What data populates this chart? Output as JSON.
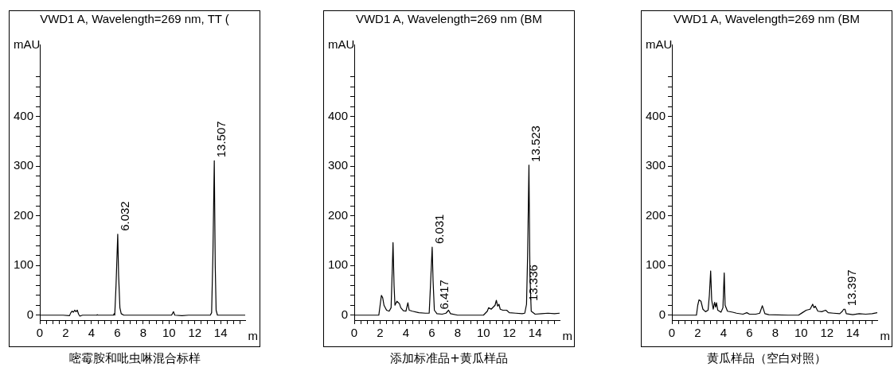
{
  "chart_data": [
    {
      "type": "line",
      "title": "VWD1 A, Wavelength=269 nm, TT (",
      "ylabel": "mAU",
      "xlabel": "m",
      "xlim": [
        0,
        15.9
      ],
      "ylim": [
        -10,
        545
      ],
      "xticks": [
        0,
        {
          "value": 0.5,
          "label": null
        },
        {
          "value": 1,
          "label": null
        },
        {
          "value": 1.5,
          "label": null
        },
        2,
        {
          "value": 2.5,
          "label": null
        },
        {
          "value": 3,
          "label": null
        },
        {
          "value": 3.5,
          "label": null
        },
        4,
        {
          "value": 4.5,
          "label": null
        },
        {
          "value": 5,
          "label": null
        },
        {
          "value": 5.5,
          "label": null
        },
        6,
        {
          "value": 6.5,
          "label": null
        },
        {
          "value": 7,
          "label": null
        },
        {
          "value": 7.5,
          "label": null
        },
        8,
        {
          "value": 8.5,
          "label": null
        },
        {
          "value": 9,
          "label": null
        },
        {
          "value": 9.5,
          "label": null
        },
        10,
        {
          "value": 10.5,
          "label": null
        },
        {
          "value": 11,
          "label": null
        },
        {
          "value": 11.5,
          "label": null
        },
        12,
        {
          "value": 12.5,
          "label": null
        },
        {
          "value": 13,
          "label": null
        },
        {
          "value": 13.5,
          "label": null
        },
        14,
        {
          "value": 14.5,
          "label": null
        },
        {
          "value": 15,
          "label": null
        },
        {
          "value": 15.5,
          "label": null
        }
      ],
      "yticks": [
        0,
        {
          "value": 20,
          "label": null
        },
        {
          "value": 40,
          "label": null
        },
        {
          "value": 60,
          "label": null
        },
        {
          "value": 80,
          "label": null
        },
        100,
        {
          "value": 120,
          "label": null
        },
        {
          "value": 140,
          "label": null
        },
        {
          "value": 160,
          "label": null
        },
        {
          "value": 180,
          "label": null
        },
        200,
        {
          "value": 220,
          "label": null
        },
        {
          "value": 240,
          "label": null
        },
        {
          "value": 260,
          "label": null
        },
        {
          "value": 280,
          "label": null
        },
        300,
        {
          "value": 320,
          "label": null
        },
        {
          "value": 340,
          "label": null
        },
        {
          "value": 360,
          "label": null
        },
        {
          "value": 380,
          "label": null
        },
        400,
        {
          "value": 420,
          "label": null
        },
        {
          "value": 440,
          "label": null
        },
        {
          "value": 460,
          "label": null
        },
        {
          "value": 480,
          "label": null
        }
      ],
      "grid": false,
      "legend": false,
      "series": [
        {
          "color": "#000000",
          "x": [
            0,
            1.8,
            2.3,
            2.4,
            2.5,
            2.6,
            2.7,
            2.8,
            2.9,
            3.0,
            3.1,
            3.3,
            4.4,
            4.45,
            4.5,
            5.7,
            5.75,
            5.8,
            5.9,
            6.032,
            6.1,
            6.2,
            6.3,
            6.5,
            10.2,
            10.35,
            10.45,
            11.0,
            11.5,
            12.9,
            13.2,
            13.3,
            13.4,
            13.507,
            13.58,
            13.65,
            13.75,
            15.9
          ],
          "values": [
            0,
            0,
            -1,
            5,
            8,
            6,
            10,
            7,
            10,
            2,
            -2,
            0,
            0,
            1,
            0,
            0,
            3,
            0,
            60,
            163,
            80,
            15,
            3,
            0,
            0,
            7,
            0,
            -1,
            0,
            0,
            0,
            5,
            120,
            311,
            100,
            10,
            0,
            0
          ]
        }
      ],
      "annotations": [
        {
          "text": "6.032",
          "x": 6.032,
          "y": 163
        },
        {
          "text": "13.507",
          "x": 13.507,
          "y": 311
        },
        "嘧霉胺和吡虫啉混合标样"
      ]
    },
    {
      "type": "line",
      "title": "VWD1 A, Wavelength=269 nm (BM",
      "ylabel": "mAU",
      "xlabel": "m",
      "xlim": [
        0,
        15.9
      ],
      "ylim": [
        -10,
        545
      ],
      "xticks": [
        0,
        {
          "value": 0.5,
          "label": null
        },
        {
          "value": 1,
          "label": null
        },
        {
          "value": 1.5,
          "label": null
        },
        2,
        {
          "value": 2.5,
          "label": null
        },
        {
          "value": 3,
          "label": null
        },
        {
          "value": 3.5,
          "label": null
        },
        4,
        {
          "value": 4.5,
          "label": null
        },
        {
          "value": 5,
          "label": null
        },
        {
          "value": 5.5,
          "label": null
        },
        6,
        {
          "value": 6.5,
          "label": null
        },
        {
          "value": 7,
          "label": null
        },
        {
          "value": 7.5,
          "label": null
        },
        8,
        {
          "value": 8.5,
          "label": null
        },
        {
          "value": 9,
          "label": null
        },
        {
          "value": 9.5,
          "label": null
        },
        10,
        {
          "value": 10.5,
          "label": null
        },
        {
          "value": 11,
          "label": null
        },
        {
          "value": 11.5,
          "label": null
        },
        12,
        {
          "value": 12.5,
          "label": null
        },
        {
          "value": 13,
          "label": null
        },
        {
          "value": 13.5,
          "label": null
        },
        14,
        {
          "value": 14.5,
          "label": null
        },
        {
          "value": 15,
          "label": null
        },
        {
          "value": 15.5,
          "label": null
        }
      ],
      "yticks": [
        0,
        {
          "value": 20,
          "label": null
        },
        {
          "value": 40,
          "label": null
        },
        {
          "value": 60,
          "label": null
        },
        {
          "value": 80,
          "label": null
        },
        100,
        {
          "value": 120,
          "label": null
        },
        {
          "value": 140,
          "label": null
        },
        {
          "value": 160,
          "label": null
        },
        {
          "value": 180,
          "label": null
        },
        200,
        {
          "value": 220,
          "label": null
        },
        {
          "value": 240,
          "label": null
        },
        {
          "value": 260,
          "label": null
        },
        {
          "value": 280,
          "label": null
        },
        300,
        {
          "value": 320,
          "label": null
        },
        {
          "value": 340,
          "label": null
        },
        {
          "value": 360,
          "label": null
        },
        {
          "value": 380,
          "label": null
        },
        400,
        {
          "value": 420,
          "label": null
        },
        {
          "value": 440,
          "label": null
        },
        {
          "value": 460,
          "label": null
        },
        {
          "value": 480,
          "label": null
        }
      ],
      "grid": false,
      "legend": false,
      "series": [
        {
          "color": "#000000",
          "x": [
            0,
            1.9,
            2.0,
            2.1,
            2.2,
            2.3,
            2.5,
            2.7,
            2.85,
            2.95,
            3.0,
            3.08,
            3.15,
            3.3,
            3.5,
            3.6,
            3.8,
            4.0,
            4.15,
            4.25,
            4.5,
            5.0,
            5.5,
            5.8,
            5.9,
            6.031,
            6.1,
            6.2,
            6.4,
            6.8,
            7.1,
            7.3,
            7.45,
            8.0,
            10.0,
            10.3,
            10.4,
            10.6,
            10.9,
            11.0,
            11.1,
            11.2,
            11.3,
            11.5,
            11.8,
            12.0,
            12.5,
            13.0,
            13.2,
            13.336,
            13.42,
            13.523,
            13.6,
            13.7,
            14.0,
            14.5,
            15.0,
            15.5,
            15.9
          ],
          "values": [
            0,
            0,
            20,
            40,
            35,
            20,
            10,
            8,
            15,
            100,
            146,
            60,
            20,
            28,
            23,
            15,
            9,
            8,
            25,
            10,
            8,
            5,
            4,
            4,
            60,
            137,
            70,
            10,
            3,
            2,
            4,
            10,
            3,
            0,
            0,
            8,
            15,
            12,
            20,
            30,
            18,
            22,
            12,
            10,
            10,
            5,
            4,
            3,
            4,
            22,
            120,
            302,
            80,
            8,
            2,
            3,
            4,
            3,
            4
          ]
        }
      ],
      "annotations": [
        {
          "text": "6.031",
          "x": 6.031,
          "y": 137
        },
        {
          "text": "6.417",
          "x": 6.417,
          "y": 5
        },
        {
          "text": "13.336",
          "x": 13.336,
          "y": 22
        },
        {
          "text": "13.523",
          "x": 13.523,
          "y": 302
        },
        "添加标准品+黄瓜样品"
      ]
    },
    {
      "type": "line",
      "title": "VWD1 A, Wavelength=269 nm (BM",
      "ylabel": "mAU",
      "xlabel": "m",
      "xlim": [
        0,
        15.9
      ],
      "ylim": [
        -10,
        545
      ],
      "xticks": [
        0,
        {
          "value": 0.5,
          "label": null
        },
        {
          "value": 1,
          "label": null
        },
        {
          "value": 1.5,
          "label": null
        },
        2,
        {
          "value": 2.5,
          "label": null
        },
        {
          "value": 3,
          "label": null
        },
        {
          "value": 3.5,
          "label": null
        },
        4,
        {
          "value": 4.5,
          "label": null
        },
        {
          "value": 5,
          "label": null
        },
        {
          "value": 5.5,
          "label": null
        },
        6,
        {
          "value": 6.5,
          "label": null
        },
        {
          "value": 7,
          "label": null
        },
        {
          "value": 7.5,
          "label": null
        },
        8,
        {
          "value": 8.5,
          "label": null
        },
        {
          "value": 9,
          "label": null
        },
        {
          "value": 9.5,
          "label": null
        },
        10,
        {
          "value": 10.5,
          "label": null
        },
        {
          "value": 11,
          "label": null
        },
        {
          "value": 11.5,
          "label": null
        },
        12,
        {
          "value": 12.5,
          "label": null
        },
        {
          "value": 13,
          "label": null
        },
        {
          "value": 13.5,
          "label": null
        },
        14,
        {
          "value": 14.5,
          "label": null
        },
        {
          "value": 15,
          "label": null
        },
        {
          "value": 15.5,
          "label": null
        }
      ],
      "yticks": [
        0,
        {
          "value": 20,
          "label": null
        },
        {
          "value": 40,
          "label": null
        },
        {
          "value": 60,
          "label": null
        },
        {
          "value": 80,
          "label": null
        },
        100,
        {
          "value": 120,
          "label": null
        },
        {
          "value": 140,
          "label": null
        },
        {
          "value": 160,
          "label": null
        },
        {
          "value": 180,
          "label": null
        },
        200,
        {
          "value": 220,
          "label": null
        },
        {
          "value": 240,
          "label": null
        },
        {
          "value": 260,
          "label": null
        },
        {
          "value": 280,
          "label": null
        },
        300,
        {
          "value": 320,
          "label": null
        },
        {
          "value": 340,
          "label": null
        },
        {
          "value": 360,
          "label": null
        },
        {
          "value": 380,
          "label": null
        },
        400,
        {
          "value": 420,
          "label": null
        },
        {
          "value": 440,
          "label": null
        },
        {
          "value": 460,
          "label": null
        },
        {
          "value": 480,
          "label": null
        }
      ],
      "grid": false,
      "legend": false,
      "series": [
        {
          "color": "#000000",
          "x": [
            0,
            1.9,
            2.0,
            2.1,
            2.25,
            2.4,
            2.6,
            2.8,
            2.9,
            3.0,
            3.08,
            3.2,
            3.3,
            3.38,
            3.45,
            3.55,
            3.8,
            3.95,
            4.05,
            4.12,
            4.3,
            4.7,
            5.0,
            5.5,
            5.8,
            6.0,
            6.5,
            6.8,
            7.0,
            7.2,
            7.5,
            9.0,
            9.8,
            10.1,
            10.4,
            10.7,
            10.9,
            11.0,
            11.1,
            11.3,
            11.6,
            11.9,
            12.1,
            12.5,
            13.0,
            13.2,
            13.3,
            13.397,
            13.5,
            14.0,
            14.5,
            15.0,
            15.5,
            15.9
          ],
          "values": [
            0,
            0,
            20,
            31,
            28,
            12,
            7,
            10,
            40,
            89,
            30,
            12,
            26,
            16,
            25,
            10,
            6,
            15,
            85,
            20,
            8,
            6,
            4,
            2,
            5,
            2,
            2,
            4,
            19,
            3,
            1,
            0,
            0,
            5,
            10,
            12,
            22,
            15,
            18,
            8,
            7,
            10,
            5,
            4,
            3,
            8,
            12,
            12,
            3,
            1,
            3,
            2,
            3,
            5
          ]
        }
      ],
      "annotations": [
        {
          "text": "13.397",
          "x": 13.397,
          "y": 12
        },
        "黄瓜样品（空白对照）"
      ]
    }
  ]
}
